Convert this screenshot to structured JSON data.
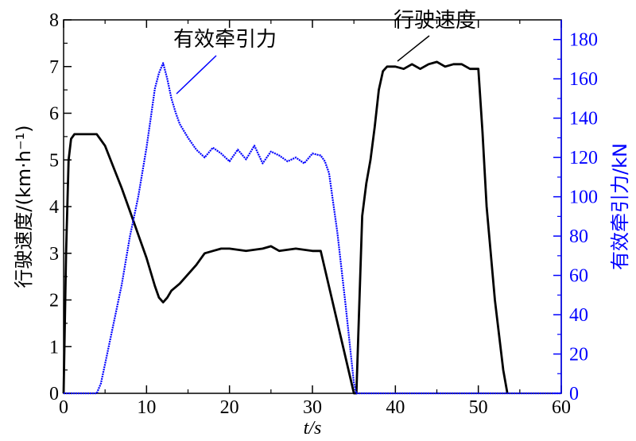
{
  "chart_data": {
    "type": "line",
    "xlabel": "t/s",
    "ylabel_left": "行驶速度/(km·h⁻¹)",
    "ylabel_right": "有效牵引力/kN",
    "xlim": [
      0,
      60
    ],
    "ylim_left": [
      0,
      8
    ],
    "ylim_right": [
      0,
      190
    ],
    "x_ticks": [
      "0",
      "10",
      "20",
      "30",
      "40",
      "50",
      "60"
    ],
    "y_left_ticks": [
      "0",
      "1",
      "2",
      "3",
      "4",
      "5",
      "6",
      "7",
      "8"
    ],
    "y_right_ticks": [
      "0",
      "20",
      "40",
      "60",
      "80",
      "100",
      "120",
      "140",
      "160",
      "180"
    ],
    "grid": false,
    "annotations": [
      {
        "text": "有效牵引力",
        "target_series": "有效牵引力"
      },
      {
        "text": "行驶速度",
        "target_series": "行驶速度"
      }
    ],
    "colors": {
      "speed": "#000000",
      "traction": "#0000ff"
    },
    "series": [
      {
        "name": "行驶速度",
        "axis": "left",
        "x": [
          0,
          0.3,
          0.6,
          0.9,
          1.3,
          2,
          3,
          4,
          5,
          6,
          7,
          8,
          9,
          10,
          11,
          11.5,
          12,
          12.5,
          13,
          14,
          15,
          16,
          17,
          18,
          19,
          20,
          22,
          24,
          25,
          26,
          28,
          30,
          31,
          35,
          35.3,
          36,
          36.5,
          37,
          37.5,
          38,
          38.5,
          39,
          40,
          41,
          42,
          43,
          44,
          45,
          46,
          47,
          48,
          49,
          49.5,
          50,
          50.5,
          51,
          52,
          53,
          53.5
        ],
        "y": [
          0,
          3.0,
          5.0,
          5.45,
          5.55,
          5.55,
          5.55,
          5.55,
          5.3,
          4.85,
          4.4,
          3.9,
          3.4,
          2.9,
          2.3,
          2.05,
          1.95,
          2.05,
          2.2,
          2.35,
          2.55,
          2.75,
          3.0,
          3.05,
          3.1,
          3.1,
          3.05,
          3.1,
          3.15,
          3.05,
          3.1,
          3.05,
          3.05,
          0,
          0,
          3.8,
          4.5,
          5.0,
          5.7,
          6.5,
          6.9,
          7.0,
          7.0,
          6.95,
          7.05,
          6.95,
          7.05,
          7.1,
          7.0,
          7.05,
          7.05,
          6.95,
          6.95,
          6.95,
          5.6,
          4.0,
          2.0,
          0.5,
          0
        ]
      },
      {
        "name": "有效牵引力",
        "axis": "right",
        "x": [
          0,
          4,
          4.5,
          5,
          6,
          7,
          8,
          9,
          10,
          10.5,
          11,
          11.5,
          12,
          12.5,
          13,
          13.5,
          14,
          15,
          16,
          17,
          18,
          19,
          20,
          21,
          22,
          23,
          24,
          25,
          26,
          27,
          28,
          29,
          30,
          31,
          31.5,
          32,
          33,
          34,
          35,
          35.3,
          53.5,
          60
        ],
        "y": [
          0,
          0,
          5,
          15,
          35,
          55,
          80,
          100,
          125,
          140,
          155,
          163,
          168,
          160,
          150,
          143,
          137,
          130,
          124,
          120,
          125,
          122,
          118,
          124,
          119,
          126,
          117,
          123,
          121,
          118,
          120,
          117,
          122,
          121,
          118,
          112,
          82,
          45,
          5,
          0,
          0,
          0
        ]
      }
    ]
  }
}
